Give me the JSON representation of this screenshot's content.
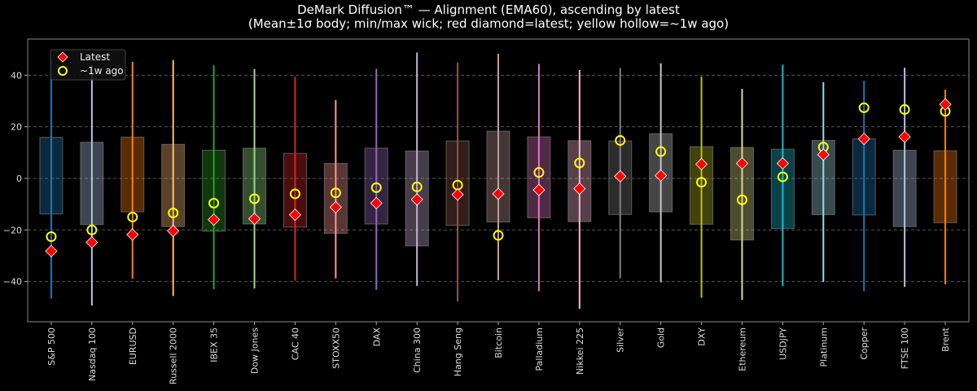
{
  "chart_data": {
    "type": "box-range",
    "title": "DeMark Diffusion™ — Alignment (EMA60), ascending by latest",
    "subtitle": "(Mean±1σ body; min/max wick; red diamond=latest; yellow hollow=~1w ago)",
    "xlabel": "",
    "ylabel": "",
    "ylim": [
      -55.6,
      54
    ],
    "yticks": [
      -40,
      -20,
      0,
      20,
      40
    ],
    "grid": true,
    "legend_position": "top-left",
    "legend": [
      {
        "label": "Latest",
        "marker": "diamond",
        "color": "#ff0000"
      },
      {
        "label": "~1w ago",
        "marker": "hollow-circle",
        "color": "#ffff00"
      }
    ],
    "categories": [
      "S&P 500",
      "Nasdaq 100",
      "EURUSD",
      "Russell 2000",
      "IBEX 35",
      "Dow Jones",
      "CAC 40",
      "STOXX50",
      "DAX",
      "China 300",
      "Hang Seng",
      "Bitcoin",
      "Palladium",
      "Nikkei 225",
      "Silver",
      "Gold",
      "DXY",
      "Ethereum",
      "USDJPY",
      "Platinum",
      "Copper",
      "FTSE 100",
      "Brent"
    ],
    "colors": [
      "#1f77b4",
      "#aec7e8",
      "#ff7f0e",
      "#ffbb78",
      "#2ca02c",
      "#98df8a",
      "#d62728",
      "#ff9896",
      "#9467bd",
      "#c5b0d5",
      "#8c564b",
      "#c49c94",
      "#e377c2",
      "#f7b6d2",
      "#7f7f7f",
      "#c7c7c7",
      "#bcbd22",
      "#dbdb8d",
      "#17becf",
      "#9edae5",
      "#1f77b4",
      "#aec7e8",
      "#ff7f0e"
    ],
    "max": [
      46.2,
      44,
      45.2,
      45.9,
      43.8,
      42.4,
      39.4,
      30.4,
      42.5,
      48.8,
      44.9,
      48.3,
      44.4,
      42,
      42.8,
      44.6,
      39.5,
      34.7,
      44.1,
      37.3,
      37.8,
      42.9,
      34.4
    ],
    "min": [
      -46.6,
      -49.3,
      -38.9,
      -45.6,
      -43,
      -42.7,
      -39.7,
      -38.8,
      -43.2,
      -41.7,
      -47.7,
      -39.5,
      -43.7,
      -50.6,
      -38.8,
      -40.3,
      -46.3,
      -47.1,
      -41.8,
      -40.2,
      -43.7,
      -42,
      -41.1
    ],
    "body_high": [
      15.9,
      14,
      16,
      13.2,
      10.9,
      11.7,
      9.7,
      5.8,
      11.7,
      10.6,
      14.5,
      18.3,
      16.1,
      14.6,
      14.5,
      17.3,
      12.3,
      12,
      11.3,
      14.7,
      15.3,
      10.9,
      10.7
    ],
    "body_low": [
      -13.8,
      -17.9,
      -13,
      -18.7,
      -20.5,
      -17.7,
      -18.9,
      -21.3,
      -17.7,
      -26.2,
      -18.2,
      -16.9,
      -15.3,
      -16.8,
      -14,
      -13,
      -17.8,
      -23.9,
      -19.4,
      -14.1,
      -14.2,
      -18.7,
      -17.2
    ],
    "latest": [
      -28.2,
      -24.8,
      -21.8,
      -20.4,
      -16,
      -15.7,
      -14.1,
      -11.2,
      -9.6,
      -8.2,
      -6.3,
      -6,
      -4.5,
      -4,
      0.8,
      1.1,
      5.5,
      5.8,
      5.8,
      9.2,
      15.3,
      16.1,
      28.7
    ],
    "week_ago": [
      -22.6,
      -20,
      -15,
      -13.4,
      -9.6,
      -7.9,
      -6,
      -5.6,
      -3.6,
      -3.3,
      -2.6,
      -22.1,
      2.3,
      6,
      14.7,
      10.4,
      -1.5,
      -8.3,
      0.6,
      12.1,
      27.4,
      26.7,
      26
    ]
  }
}
